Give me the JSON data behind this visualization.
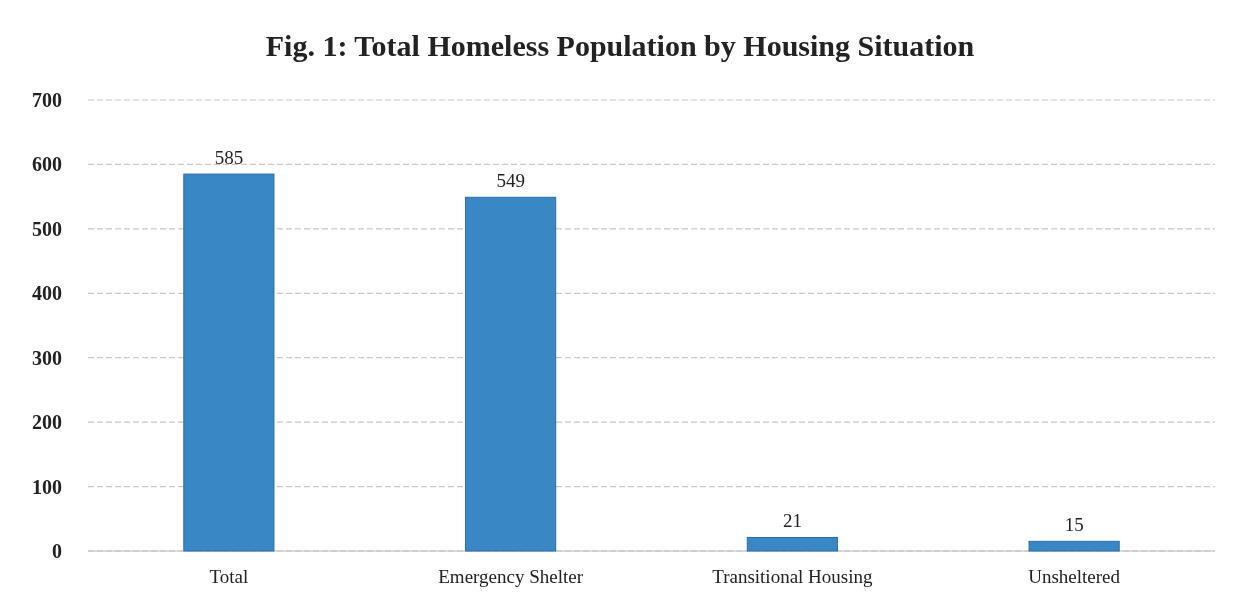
{
  "chart_data": {
    "type": "bar",
    "title": "Fig. 1: Total Homeless Population by Housing Situation",
    "categories": [
      "Total",
      "Emergency Shelter",
      "Transitional Housing",
      "Unsheltered"
    ],
    "values": [
      585,
      549,
      21,
      15
    ],
    "color": "#3a87c6",
    "ylim": [
      0,
      700
    ],
    "yticks": [
      0,
      100,
      200,
      300,
      400,
      500,
      600,
      700
    ],
    "grid": "y",
    "data_labels": true
  }
}
